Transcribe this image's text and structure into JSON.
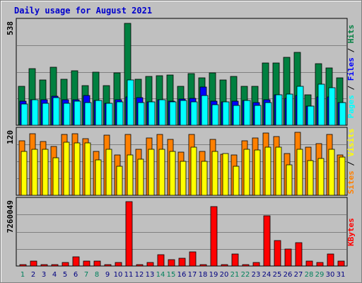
{
  "chart_data": {
    "type": "bar",
    "title": "Daily usage for August 2021",
    "categories": [
      "1",
      "2",
      "3",
      "4",
      "5",
      "6",
      "7",
      "8",
      "9",
      "10",
      "11",
      "12",
      "13",
      "14",
      "15",
      "16",
      "17",
      "18",
      "19",
      "20",
      "21",
      "22",
      "23",
      "24",
      "25",
      "26",
      "27",
      "28",
      "29",
      "30",
      "31"
    ],
    "weekend_days": [
      "1",
      "7",
      "8",
      "14",
      "15",
      "21",
      "22",
      "28",
      "29"
    ],
    "panels": [
      {
        "name": "hits-files-pages",
        "max_label": "538",
        "ymax": 538,
        "series": [
          {
            "name": "Hits",
            "color": "#008040",
            "values": [
              205,
              296,
              238,
              304,
              243,
              285,
              208,
              278,
              209,
              275,
              534,
              242,
              257,
              259,
              262,
              204,
              272,
              250,
              274,
              239,
              256,
              204,
              205,
              326,
              326,
              357,
              383,
              160,
              321,
              299,
              247
            ]
          },
          {
            "name": "Files",
            "color": "#0000ff",
            "values": [
              127,
              134,
              132,
              151,
              134,
              135,
              154,
              130,
              114,
              134,
              148,
              144,
              123,
              135,
              128,
              138,
              142,
              202,
              128,
              123,
              125,
              129,
              118,
              132,
              159,
              142,
              157,
              99,
              150,
              147,
              117
            ]
          },
          {
            "name": "Pages",
            "color": "#00ffff",
            "values": [
              113,
              134,
              115,
              145,
              115,
              128,
              119,
              130,
              114,
              123,
              238,
              120,
              123,
              135,
              123,
              130,
              124,
              157,
              107,
              123,
              103,
              129,
              105,
              119,
              160,
              164,
              205,
              99,
              216,
              196,
              117
            ]
          }
        ]
      },
      {
        "name": "sites-visits",
        "max_label": "120",
        "ymax": 120,
        "series": [
          {
            "name": "Visits",
            "color": "#ff8000",
            "values": [
              102,
              116,
              101,
              92,
              115,
              116,
              107,
              82,
              113,
              76,
              114,
              86,
              108,
              114,
              105,
              81,
              114,
              83,
              105,
              77,
              76,
              102,
              108,
              117,
              111,
              79,
              119,
              91,
              97,
              114,
              76
            ]
          },
          {
            "name": "Sites",
            "color": "#ffff00",
            "values": [
              83,
              87,
              86,
              70,
              100,
              98,
              98,
              66,
              87,
              55,
              76,
              68,
              86,
              87,
              83,
              64,
              91,
              64,
              83,
              78,
              54,
              87,
              85,
              91,
              91,
              57,
              86,
              65,
              69,
              86,
              72
            ]
          }
        ]
      },
      {
        "name": "kbytes",
        "max_label": "7260049",
        "ymax": 7260049,
        "series": [
          {
            "name": "KBytes",
            "color": "#ff0000",
            "values": [
              180000,
              520000,
              180000,
              180000,
              360000,
              1050000,
              520000,
              520000,
              180000,
              360000,
              7260000,
              180000,
              360000,
              1250000,
              700000,
              880000,
              1590000,
              180000,
              6700000,
              180000,
              1350000,
              180000,
              360000,
              5700000,
              2890000,
              1920000,
              2610000,
              520000,
              360000,
              1390000,
              520000
            ]
          }
        ]
      }
    ],
    "side_labels": {
      "panel1": [
        "Pages",
        "Files",
        "Hits"
      ],
      "panel2": [
        "Sites",
        "Visits"
      ],
      "panel3": [
        "KBytes"
      ],
      "separator": " / "
    },
    "colors": {
      "plot_background": "#c0c0c0",
      "gridline": "#808080",
      "weekend_tick": "#00805c",
      "weekday_tick": "#000080",
      "title": "#0000cc"
    }
  }
}
